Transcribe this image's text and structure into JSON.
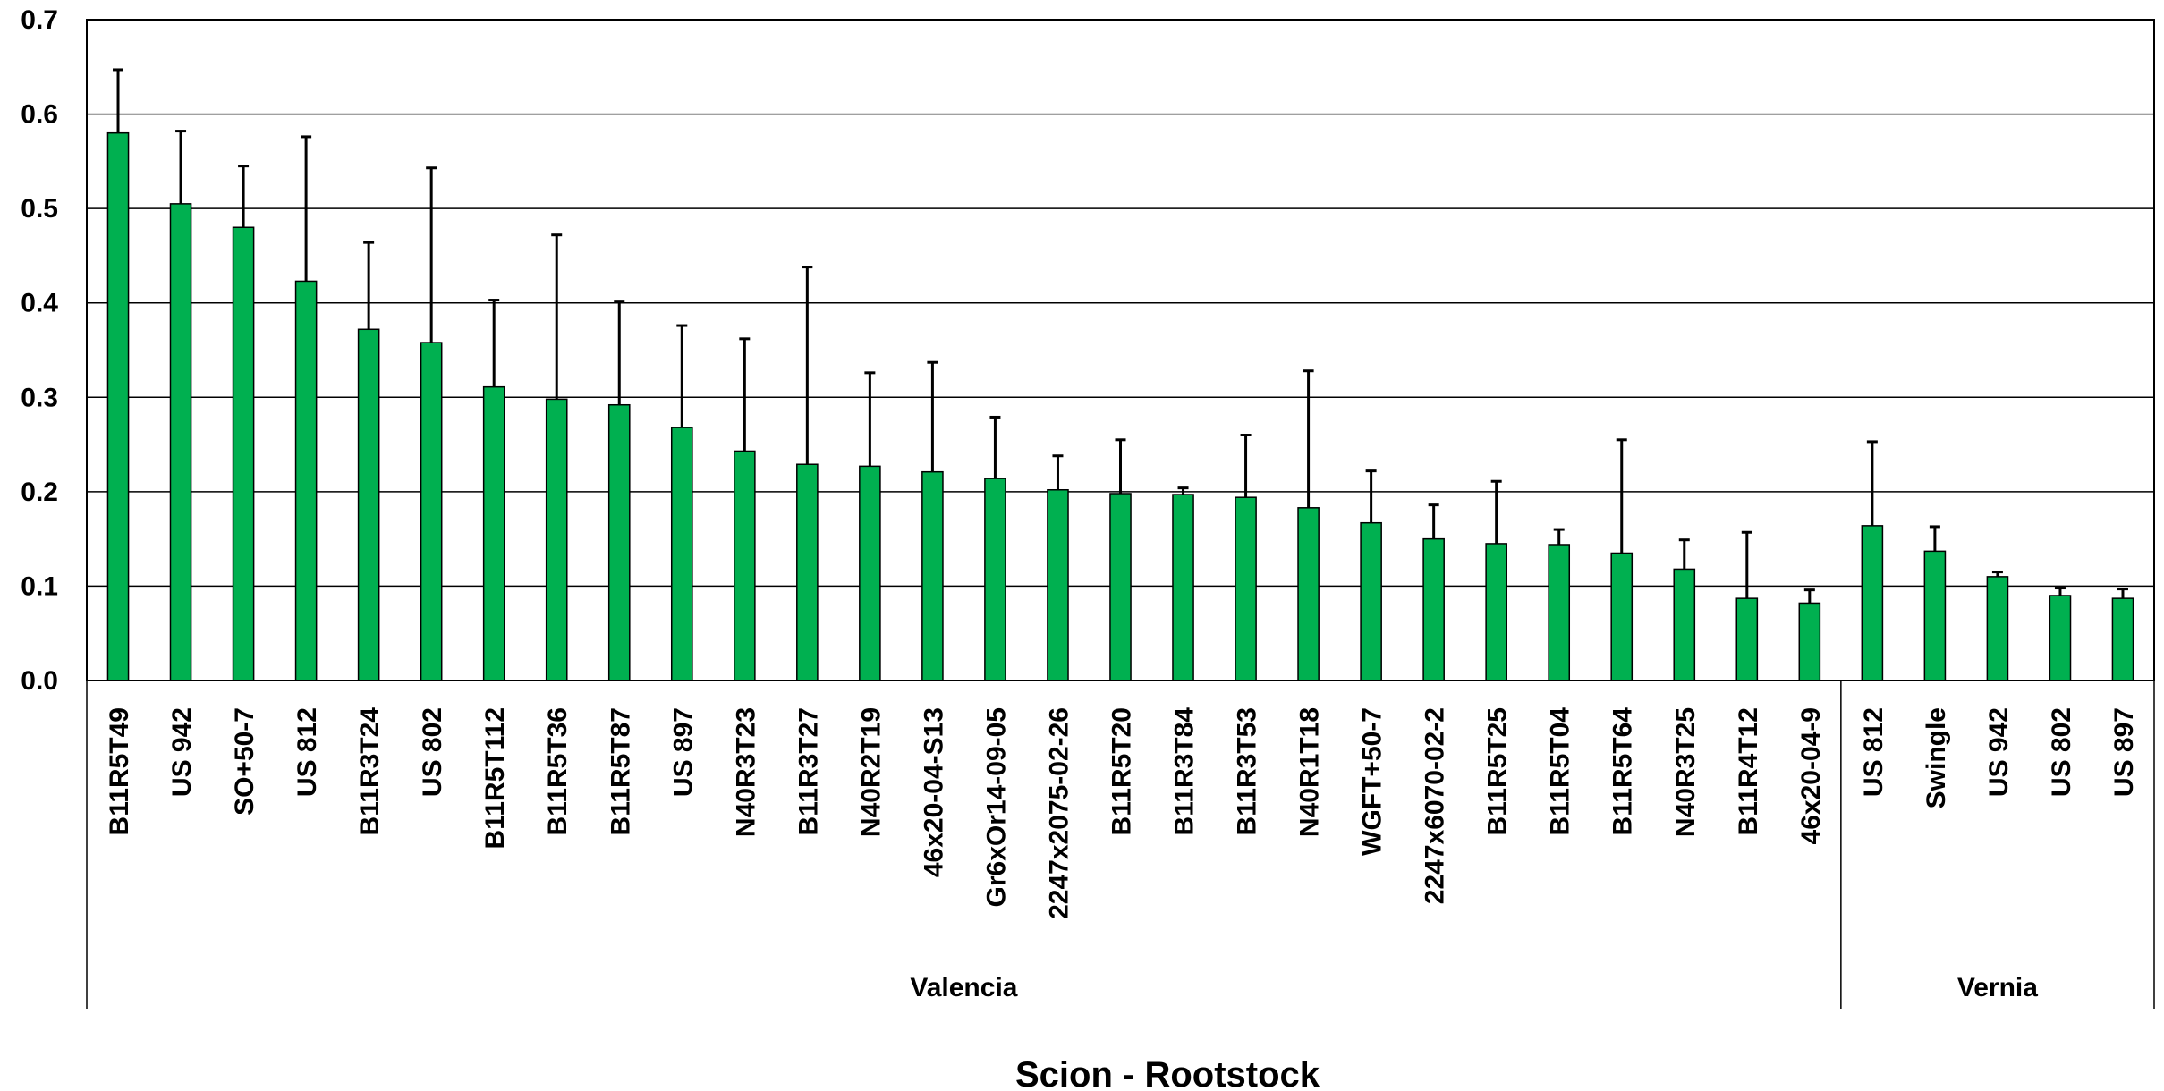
{
  "chart_data": {
    "type": "bar",
    "xlabel": "Scion -  Rootstock",
    "ylabel": "",
    "ylim": [
      0,
      0.7
    ],
    "yticks": [
      "0.0",
      "0.1",
      "0.2",
      "0.3",
      "0.4",
      "0.5",
      "0.6",
      "0.7"
    ],
    "grid": true,
    "bar_color": "#00b050",
    "categories": [
      "B11R5T49",
      "US 942",
      "SO+50-7",
      "US 812",
      "B11R3T24",
      "US 802",
      "B11R5T112",
      "B11R5T36",
      "B11R5T87",
      "US 897",
      "N40R3T23",
      "B11R3T27",
      "N40R2T19",
      "46x20-04-S13",
      "Gr6xOr14-09-05",
      "2247x2075-02-26",
      "B11R5T20",
      "B11R3T84",
      "B11R3T53",
      "N40R1T18",
      "WGFT+50-7",
      "2247x6070-02-2",
      "B11R5T25",
      "B11R5T04",
      "B11R5T64",
      "N40R3T25",
      "B11R4T12",
      "46x20-04-9",
      "US 812",
      "Swingle",
      "US 942",
      "US 802",
      "US 897"
    ],
    "values": [
      0.58,
      0.505,
      0.48,
      0.423,
      0.372,
      0.358,
      0.311,
      0.298,
      0.292,
      0.268,
      0.243,
      0.229,
      0.227,
      0.221,
      0.214,
      0.202,
      0.198,
      0.197,
      0.194,
      0.183,
      0.167,
      0.15,
      0.145,
      0.144,
      0.135,
      0.118,
      0.087,
      0.082,
      0.164,
      0.137,
      0.11,
      0.09,
      0.087
    ],
    "error_upper": [
      0.647,
      0.582,
      0.545,
      0.576,
      0.464,
      0.543,
      0.403,
      0.472,
      0.401,
      0.376,
      0.362,
      0.438,
      0.326,
      0.337,
      0.279,
      0.238,
      0.255,
      0.204,
      0.26,
      0.328,
      0.222,
      0.186,
      0.211,
      0.16,
      0.255,
      0.149,
      0.157,
      0.096,
      0.253,
      0.163,
      0.115,
      0.098,
      0.097
    ],
    "groups": [
      {
        "name": "Valencia",
        "start": 0,
        "end": 27
      },
      {
        "name": "Vernia",
        "start": 28,
        "end": 32
      }
    ]
  }
}
